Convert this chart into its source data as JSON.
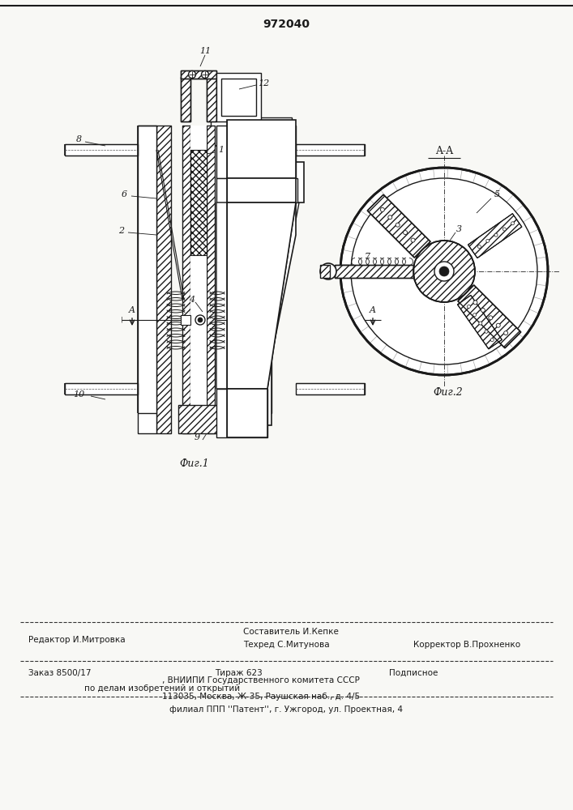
{
  "title": "972040",
  "bg_color": "#f8f8f5",
  "line_color": "#1a1a1a",
  "fig1_label": "Фиг.1",
  "fig2_label": "Фиг.2",
  "section_label": "A-A",
  "editor_line": "Редактор И.Митровка",
  "sostavitel": "Составитель И.Кепке",
  "tehred": "Техред С.Митунова",
  "korrektor": "Корректор В.Прохненко",
  "order_line": "Заказ 8500/17",
  "tiraz_line": "Тираж 623",
  "podpisnoe": "Подписное",
  "vniip_line1": ", ВНИИПИ Государственного комитета СССР",
  "vniip_line2": "по делам изобретений и открытий",
  "vniip_line3": "113035, Москва, Ж-35, Раушская наб., д. 4/5",
  "patent_line": "филиал ППП ''Патент'', г. Ужгород, ул. Проектная, 4"
}
